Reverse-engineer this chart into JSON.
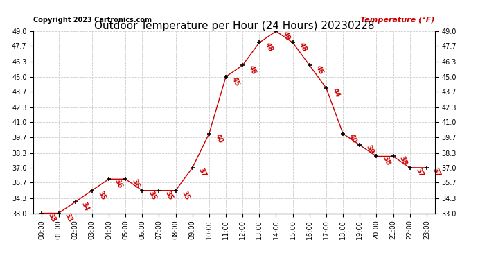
{
  "title": "Outdoor Temperature per Hour (24 Hours) 20230228",
  "copyright": "Copyright 2023 Cartronics.com",
  "legend_label": "Temperature (°F)",
  "hours": [
    "00:00",
    "01:00",
    "02:00",
    "03:00",
    "04:00",
    "05:00",
    "06:00",
    "07:00",
    "08:00",
    "09:00",
    "10:00",
    "11:00",
    "12:00",
    "13:00",
    "14:00",
    "15:00",
    "16:00",
    "17:00",
    "18:00",
    "19:00",
    "20:00",
    "21:00",
    "22:00",
    "23:00"
  ],
  "temperatures": [
    33,
    33,
    34,
    35,
    36,
    36,
    35,
    35,
    35,
    37,
    40,
    45,
    46,
    48,
    49,
    48,
    46,
    44,
    40,
    39,
    38,
    38,
    37,
    37
  ],
  "line_color": "#cc0000",
  "marker_color": "#000000",
  "label_color": "#cc0000",
  "background_color": "#ffffff",
  "grid_color": "#cccccc",
  "ylim_min": 33.0,
  "ylim_max": 49.0,
  "yticks": [
    33.0,
    34.3,
    35.7,
    37.0,
    38.3,
    39.7,
    41.0,
    42.3,
    43.7,
    45.0,
    46.3,
    47.7,
    49.0
  ],
  "title_fontsize": 11,
  "copyright_fontsize": 7,
  "legend_fontsize": 8,
  "label_fontsize": 7,
  "tick_fontsize": 7,
  "ytick_fontsize": 7
}
